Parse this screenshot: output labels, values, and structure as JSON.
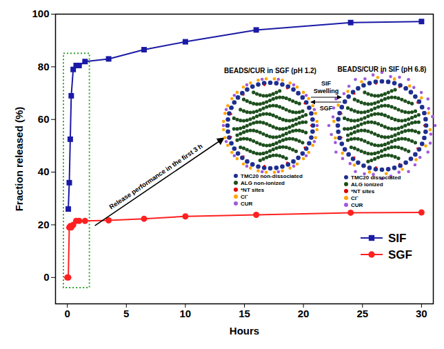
{
  "chart_data": {
    "type": "line",
    "x_label": "Hours",
    "y_label": "Fraction released (%)",
    "xlim": [
      -1,
      31
    ],
    "ylim": [
      -10,
      100
    ],
    "xticks": [
      0,
      5,
      10,
      15,
      20,
      25,
      30
    ],
    "yticks": [
      0,
      20,
      40,
      60,
      80,
      100
    ],
    "grid": false,
    "legend": "bottom-right",
    "series": [
      {
        "name": "SIF",
        "color": "#1a1aa6",
        "marker": "square",
        "x": [
          0.083,
          0.167,
          0.25,
          0.333,
          0.5,
          0.75,
          1,
          1.5,
          3.5,
          6.5,
          10,
          16,
          24,
          30
        ],
        "values": [
          26,
          36,
          52.5,
          69,
          79,
          80.5,
          80.5,
          82,
          83,
          86.5,
          89.5,
          94,
          96.8,
          97.2
        ]
      },
      {
        "name": "SGF",
        "color": "#ff2020",
        "marker": "circle",
        "x": [
          0,
          0.083,
          0.167,
          0.25,
          0.333,
          0.5,
          0.75,
          1,
          1.5,
          3.5,
          6.5,
          10,
          16,
          24,
          30
        ],
        "values": [
          0,
          0,
          19,
          19.5,
          19,
          20,
          21.5,
          21.5,
          21.5,
          21.7,
          22.3,
          23.2,
          23.8,
          24.6,
          24.7
        ]
      }
    ],
    "highlight": {
      "text": "Release performance in the first 3 h",
      "color": "#2e9e2e",
      "xlim": [
        -0.3,
        1.9
      ],
      "ylim": [
        -4,
        85
      ]
    },
    "inset": {
      "left": {
        "title": "BEADS/CUR in SGF (pH 1.2)",
        "items": [
          {
            "label": "TMC20 non-dissociated",
            "color": "#1f2f8f"
          },
          {
            "label": "ALG non-ionized",
            "color": "#1d4f1d"
          },
          {
            "label": "*NT sites",
            "color": "#e00000"
          },
          {
            "label": "Cl⁻",
            "color": "#ffa500"
          },
          {
            "label": "CUR",
            "color": "#a05ad8"
          }
        ]
      },
      "right": {
        "title": "BEADS/CUR in SIF (pH 6.8)",
        "items": [
          {
            "label": "TMC20 dissociated",
            "color": "#1f2f8f"
          },
          {
            "label": "ALG ionized",
            "color": "#1d4f1d"
          },
          {
            "label": "*NT sites",
            "color": "#e00000"
          },
          {
            "label": "Cl⁻",
            "color": "#ffa500"
          },
          {
            "label": "CUR",
            "color": "#a05ad8"
          }
        ]
      },
      "forward": "SIF",
      "process": "Swelling",
      "back": "SGF"
    }
  }
}
